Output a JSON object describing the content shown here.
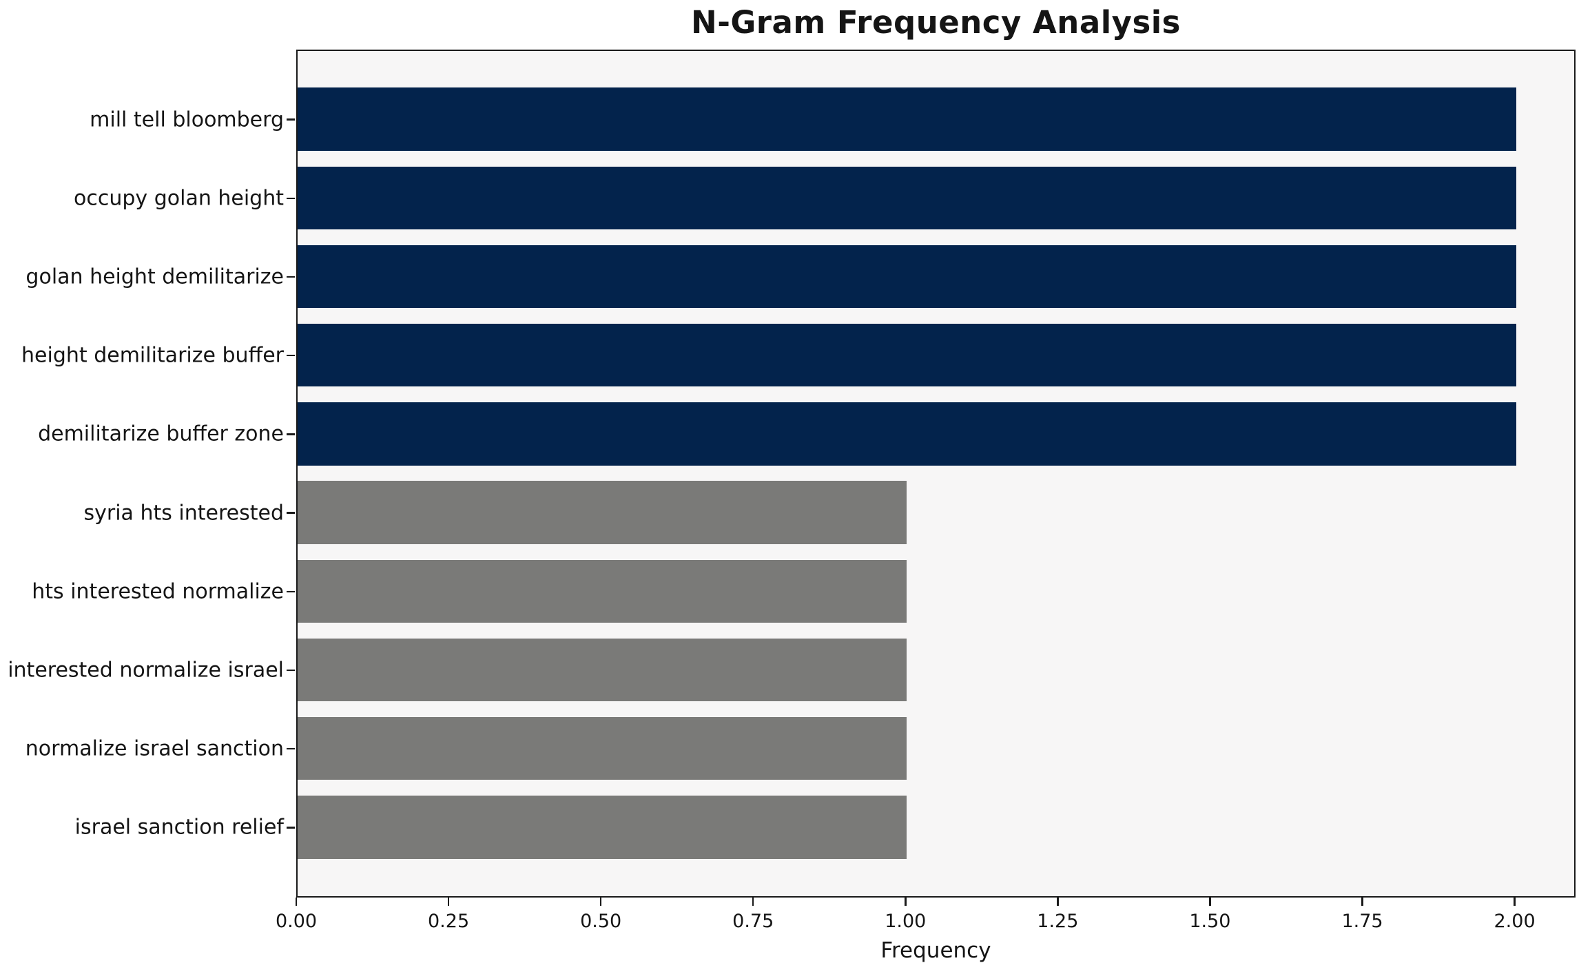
{
  "chart_data": {
    "type": "bar",
    "orientation": "horizontal",
    "title": "N-Gram Frequency Analysis",
    "xlabel": "Frequency",
    "ylabel": "",
    "categories": [
      "mill tell bloomberg",
      "occupy golan height",
      "golan height demilitarize",
      "height demilitarize buffer",
      "demilitarize buffer zone",
      "syria hts interested",
      "hts interested normalize",
      "interested normalize israel",
      "normalize israel sanction",
      "israel sanction relief"
    ],
    "values": [
      2,
      2,
      2,
      2,
      2,
      1,
      1,
      1,
      1,
      1
    ],
    "bar_colors": [
      "#03234c",
      "#03234c",
      "#03234c",
      "#03234c",
      "#03234c",
      "#7a7a78",
      "#7a7a78",
      "#7a7a78",
      "#7a7a78",
      "#7a7a78"
    ],
    "xlim": [
      0,
      2.1
    ],
    "xticks": [
      0,
      0.25,
      0.5,
      0.75,
      1.0,
      1.25,
      1.5,
      1.75,
      2.0
    ],
    "xtick_labels": [
      "0.00",
      "0.25",
      "0.50",
      "0.75",
      "1.00",
      "1.25",
      "1.50",
      "1.75",
      "2.00"
    ],
    "grid": false,
    "legend": null,
    "colors": {
      "frequency_2_bar": "#03234c",
      "frequency_1_bar": "#7a7a78",
      "plot_background": "#f7f6f6",
      "figure_background": "#ffffff",
      "spine": "#1a1a1a",
      "text": "#151515"
    }
  }
}
